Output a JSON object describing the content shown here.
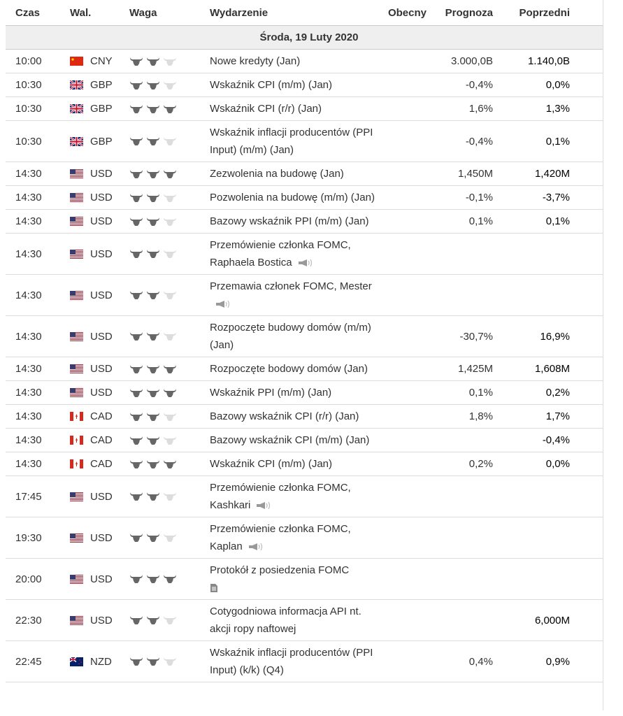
{
  "header": {
    "time": "Czas",
    "currency": "Wal.",
    "importance": "Waga",
    "event": "Wydarzenie",
    "actual": "Obecny",
    "forecast": "Prognoza",
    "previous": "Poprzedni"
  },
  "date": "Środa, 19 Luty 2020",
  "rows": [
    {
      "time": "10:00",
      "currency": "CNY",
      "importance": 2,
      "event": "Nowe kredyty (Jan)",
      "actual": null,
      "forecast": "3.000,0B",
      "previous": "1.140,0B"
    },
    {
      "time": "10:30",
      "currency": "GBP",
      "importance": 2,
      "event": "Wskaźnik CPI (m/m) (Jan)",
      "actual": null,
      "forecast": "-0,4%",
      "previous": "0,0%"
    },
    {
      "time": "10:30",
      "currency": "GBP",
      "importance": 3,
      "event": "Wskaźnik CPI (r/r) (Jan)",
      "actual": null,
      "forecast": "1,6%",
      "previous": "1,3%"
    },
    {
      "time": "10:30",
      "currency": "GBP",
      "importance": 2,
      "event": "Wskaźnik inflacji producentów (PPI Input) (m/m) (Jan)",
      "actual": null,
      "forecast": "-0,4%",
      "previous": "0,1%"
    },
    {
      "time": "14:30",
      "currency": "USD",
      "importance": 3,
      "event": "Zezwolenia na budowę (Jan)",
      "actual": null,
      "forecast": "1,450M",
      "previous": "1,420M"
    },
    {
      "time": "14:30",
      "currency": "USD",
      "importance": 2,
      "event": "Pozwolenia na budowę (m/m) (Jan)",
      "actual": null,
      "forecast": "-0,1%",
      "previous": "-3,7%"
    },
    {
      "time": "14:30",
      "currency": "USD",
      "importance": 2,
      "event": "Bazowy wskaźnik PPI (m/m) (Jan)",
      "actual": null,
      "forecast": "0,1%",
      "previous": "0,1%"
    },
    {
      "time": "14:30",
      "currency": "USD",
      "importance": 2,
      "event": "Przemówienie członka FOMC, Raphaela Bostica",
      "icon": "speech",
      "actual": null,
      "forecast": null,
      "previous": null
    },
    {
      "time": "14:30",
      "currency": "USD",
      "importance": 2,
      "event": "Przemawia członek FOMC, Mester",
      "icon": "speech",
      "actual": null,
      "forecast": null,
      "previous": null
    },
    {
      "time": "14:30",
      "currency": "USD",
      "importance": 2,
      "event": "Rozpoczęte budowy domów (m/m) (Jan)",
      "actual": null,
      "forecast": "-30,7%",
      "previous": "16,9%"
    },
    {
      "time": "14:30",
      "currency": "USD",
      "importance": 3,
      "event": "Rozpoczęte bodowy domów (Jan)",
      "actual": null,
      "forecast": "1,425M",
      "previous": "1,608M"
    },
    {
      "time": "14:30",
      "currency": "USD",
      "importance": 3,
      "event": "Wskaźnik PPI (m/m) (Jan)",
      "actual": null,
      "forecast": "0,1%",
      "previous": "0,2%"
    },
    {
      "time": "14:30",
      "currency": "CAD",
      "importance": 2,
      "event": "Bazowy wskaźnik CPI (r/r) (Jan)",
      "actual": null,
      "forecast": "1,8%",
      "previous": "1,7%"
    },
    {
      "time": "14:30",
      "currency": "CAD",
      "importance": 2,
      "event": "Bazowy wskaźnik CPI (m/m) (Jan)",
      "actual": null,
      "forecast": null,
      "previous": "-0,4%"
    },
    {
      "time": "14:30",
      "currency": "CAD",
      "importance": 3,
      "event": "Wskaźnik CPI (m/m) (Jan)",
      "actual": null,
      "forecast": "0,2%",
      "previous": "0,0%"
    },
    {
      "time": "17:45",
      "currency": "USD",
      "importance": 2,
      "event": "Przemówienie członka FOMC, Kashkari",
      "icon": "speech",
      "actual": null,
      "forecast": null,
      "previous": null
    },
    {
      "time": "19:30",
      "currency": "USD",
      "importance": 2,
      "event": "Przemówienie członka FOMC, Kaplan",
      "icon": "speech",
      "actual": null,
      "forecast": null,
      "previous": null
    },
    {
      "time": "20:00",
      "currency": "USD",
      "importance": 3,
      "event": "Protokół z posiedzenia FOMC",
      "icon": "report",
      "actual": null,
      "forecast": null,
      "previous": null
    },
    {
      "time": "22:30",
      "currency": "USD",
      "importance": 2,
      "event": "Cotygodniowa informacja API nt. akcji ropy naftowej",
      "actual": null,
      "forecast": null,
      "previous": "6,000M"
    },
    {
      "time": "22:45",
      "currency": "NZD",
      "importance": 2,
      "event": "Wskaźnik inflacji producentów (PPI Input) (k/k) (Q4)",
      "actual": null,
      "forecast": "0,4%",
      "previous": "0,9%"
    }
  ]
}
